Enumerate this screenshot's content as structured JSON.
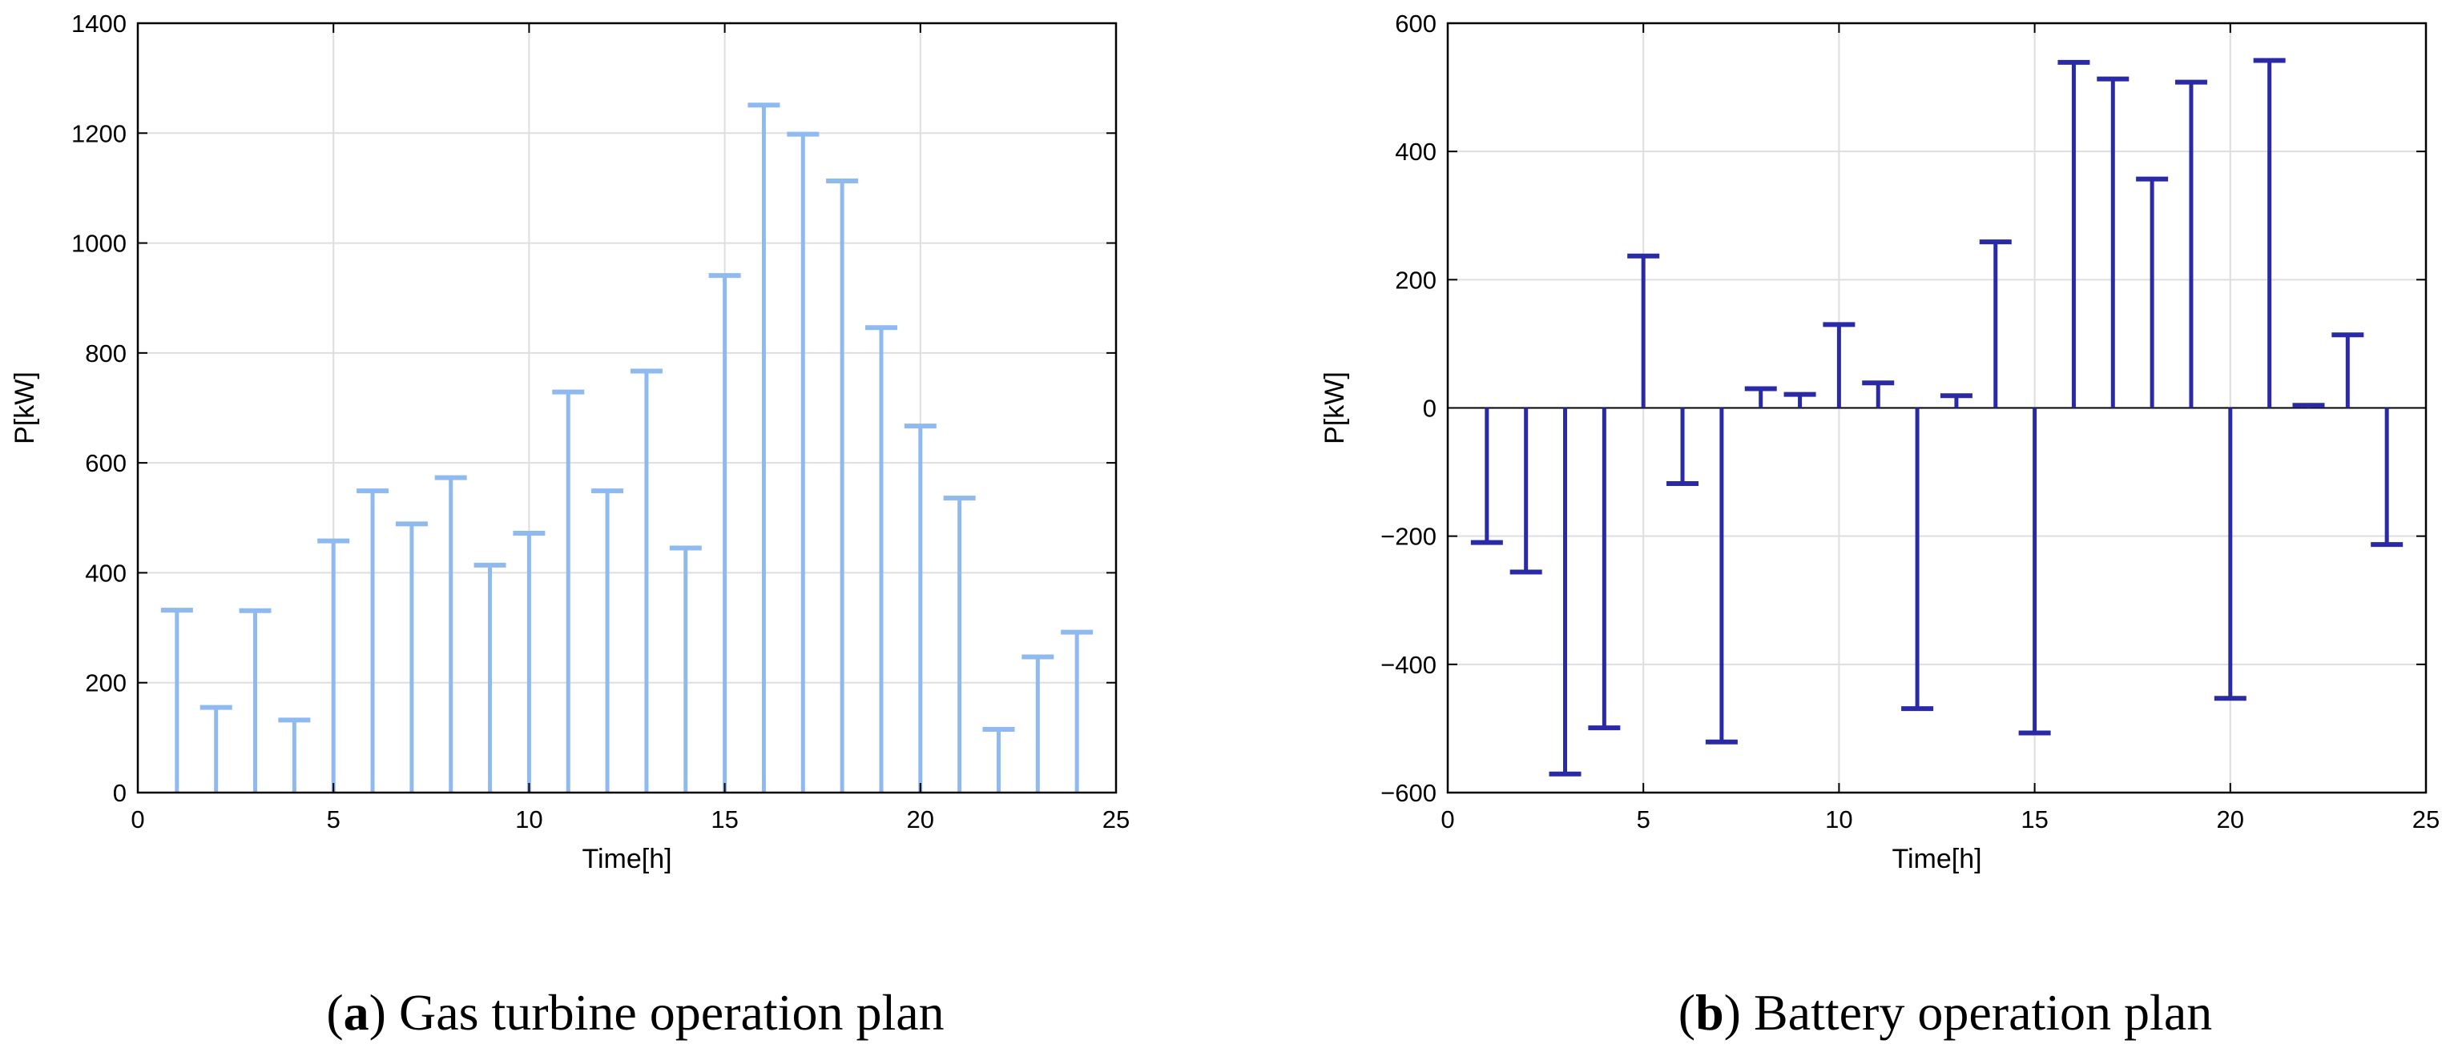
{
  "chart_data": [
    {
      "id": "a",
      "type": "stem",
      "title": "Gas turbine operation plan",
      "caption_letter": "a",
      "xlabel": "Time[h]",
      "ylabel": "P[kW]",
      "xlim": [
        0,
        25
      ],
      "ylim": [
        0,
        1400
      ],
      "xticks": [
        0,
        5,
        10,
        15,
        20,
        25
      ],
      "yticks": [
        0,
        200,
        400,
        600,
        800,
        1000,
        1200,
        1400
      ],
      "ytick_labels": [
        "0",
        "200",
        "400",
        "600",
        "800",
        "1000",
        "1200",
        "1400"
      ],
      "grid": true,
      "color": "#8fbaf0",
      "x": [
        1,
        2,
        3,
        4,
        5,
        6,
        7,
        8,
        9,
        10,
        11,
        12,
        13,
        14,
        15,
        16,
        17,
        18,
        19,
        20,
        21,
        22,
        23,
        24
      ],
      "values": [
        332,
        155,
        331,
        132,
        458,
        549,
        489,
        573,
        414,
        472,
        729,
        549,
        767,
        445,
        941,
        1251,
        1198,
        1113,
        846,
        667,
        536,
        115,
        247,
        292
      ]
    },
    {
      "id": "b",
      "type": "stem",
      "title": "Battery operation plan",
      "caption_letter": "b",
      "xlabel": "Time[h]",
      "ylabel": "P[kW]",
      "xlim": [
        0,
        25
      ],
      "ylim": [
        -600,
        600
      ],
      "xticks": [
        0,
        5,
        10,
        15,
        20,
        25
      ],
      "yticks": [
        -600,
        -400,
        -200,
        0,
        200,
        400,
        600
      ],
      "ytick_labels": [
        "−600",
        "−400",
        "−200",
        "0",
        "200",
        "400",
        "600"
      ],
      "grid": true,
      "color": "#2a2aa6",
      "x": [
        1,
        2,
        3,
        4,
        5,
        6,
        7,
        8,
        9,
        10,
        11,
        12,
        13,
        14,
        15,
        16,
        17,
        18,
        19,
        20,
        21,
        22,
        23,
        24
      ],
      "values": [
        -210,
        -256,
        -571,
        -499,
        237,
        -118,
        -521,
        30,
        21,
        130,
        39,
        -469,
        19,
        259,
        -507,
        539,
        513,
        357,
        508,
        -453,
        542,
        4,
        114,
        -213
      ]
    }
  ]
}
